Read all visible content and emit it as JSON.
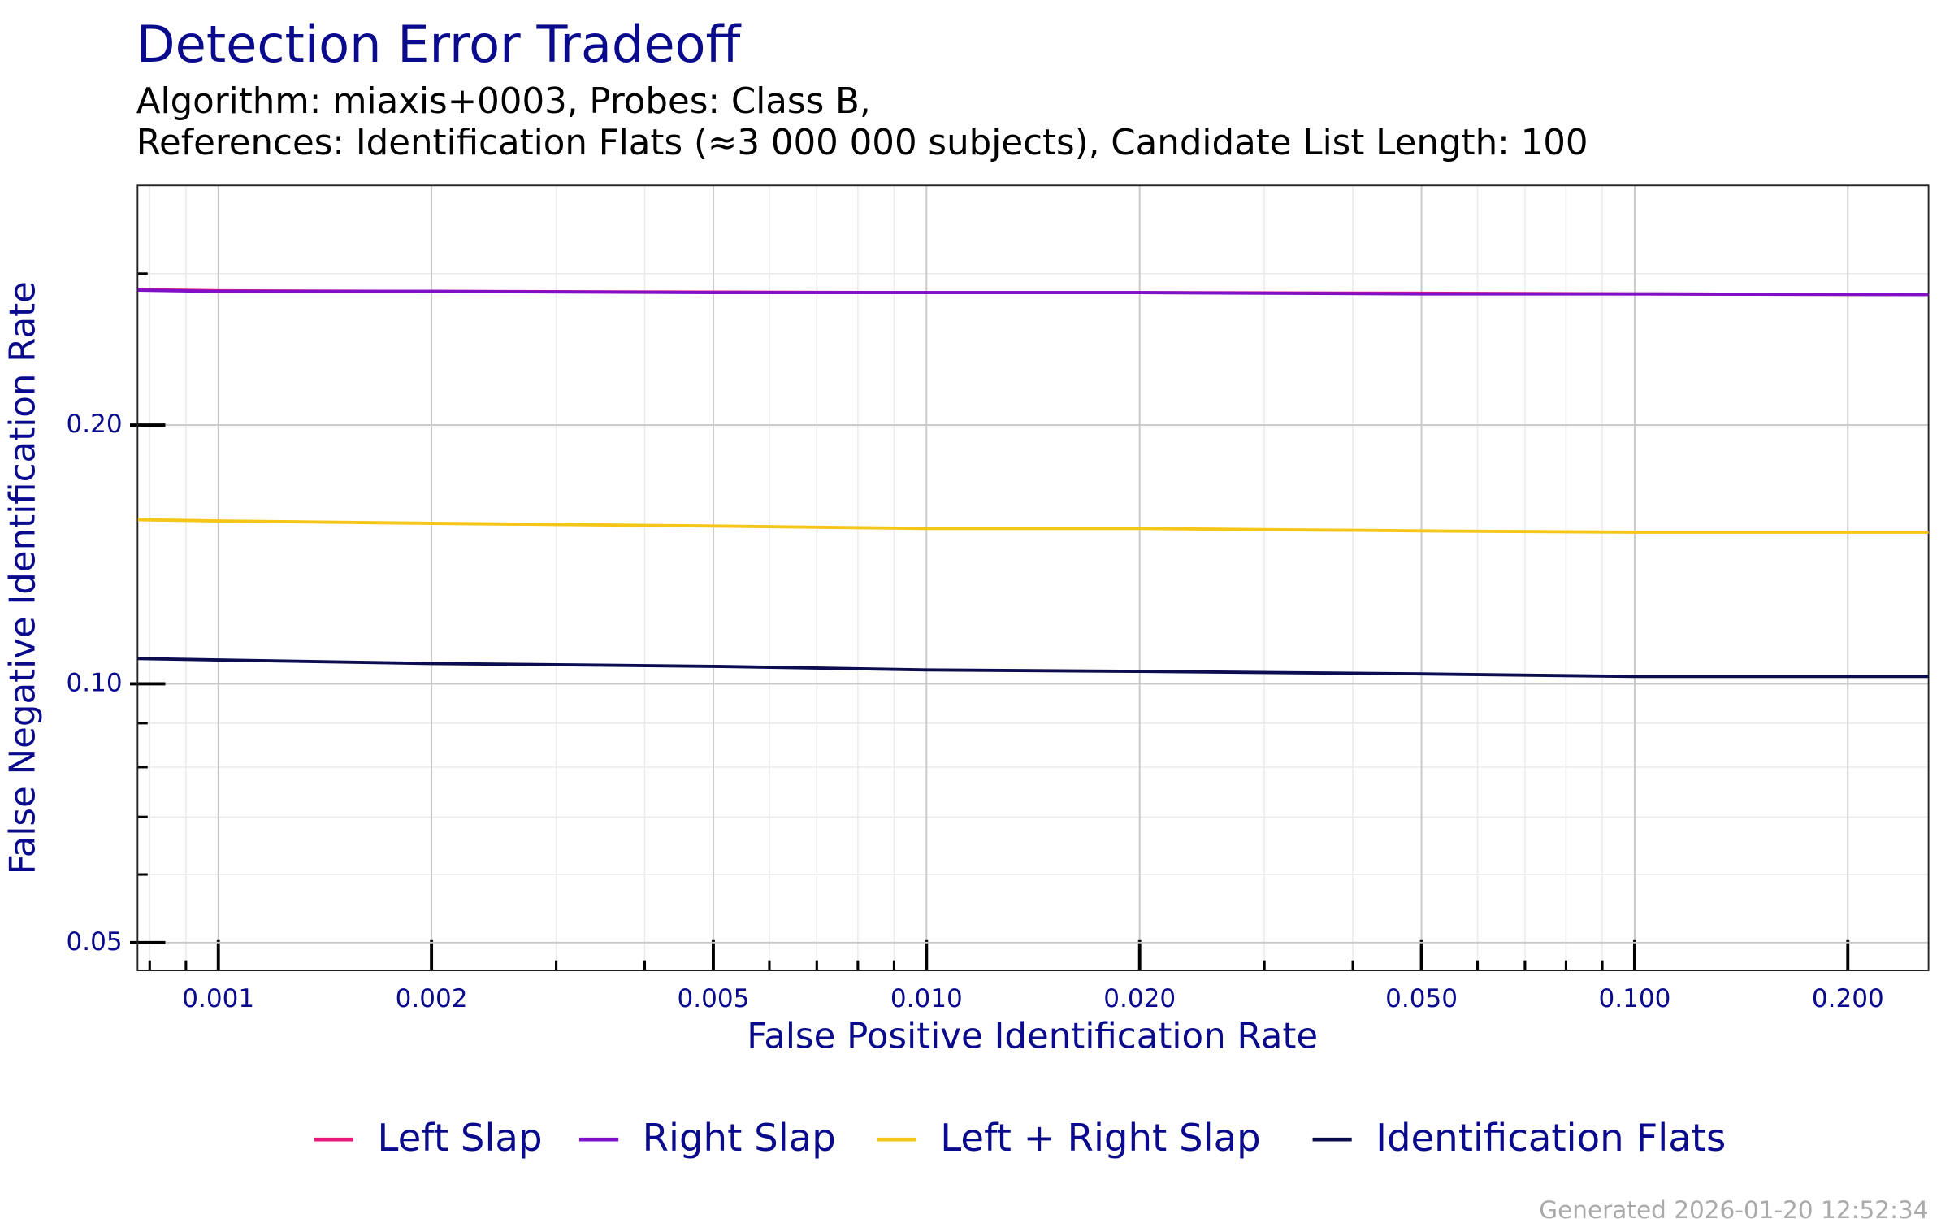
{
  "chart_data": {
    "type": "line",
    "title": "Detection Error Tradeoff",
    "subtitle": [
      "Algorithm: miaxis+0003, Probes: Class B,",
      "References: Identification Flats (≈3 000 000 subjects), Candidate List Length: 100"
    ],
    "x_label": "False Positive Identification Rate",
    "y_label": "False Negative Identification Rate",
    "footer": "Generated 2026-01-20 12:52:34",
    "x": [
      0.00077,
      0.001,
      0.002,
      0.005,
      0.01,
      0.02,
      0.05,
      0.1,
      0.26
    ],
    "series": [
      {
        "name": "Left Slap",
        "color": "#e8197d",
        "values": [
          0.2875,
          0.2866,
          0.2861,
          0.2856,
          0.2852,
          0.2852,
          0.2847,
          0.2842,
          0.2837
        ]
      },
      {
        "name": "Right Slap",
        "color": "#8010c8",
        "values": [
          0.2871,
          0.2861,
          0.2861,
          0.2852,
          0.2852,
          0.2852,
          0.2842,
          0.2842,
          0.2837
        ]
      },
      {
        "name": "Left + Right Slap",
        "color": "#f5c518",
        "values": [
          0.1552,
          0.1547,
          0.1537,
          0.1526,
          0.1516,
          0.1516,
          0.1506,
          0.1501,
          0.1501
        ]
      },
      {
        "name": "Identification Flats",
        "color": "#0c0c50",
        "values": [
          0.107,
          0.1066,
          0.1056,
          0.1048,
          0.1038,
          0.1034,
          0.1027,
          0.102,
          0.102
        ]
      }
    ],
    "x_log": true,
    "y_log": true,
    "xlim": [
      0.000769,
      0.26
    ],
    "ylim": [
      0.0464,
      0.38
    ],
    "xticks": [
      0.001,
      0.002,
      0.005,
      {
        "value": 0.01,
        "label": "0.010"
      },
      {
        "value": 0.02,
        "label": "0.020"
      },
      {
        "value": 0.05,
        "label": "0.050"
      },
      {
        "value": 0.1,
        "label": "0.100"
      },
      {
        "value": 0.2,
        "label": "0.200"
      }
    ],
    "yticks": [
      0.05,
      {
        "value": 0.1,
        "label": "0.10"
      },
      {
        "value": 0.2,
        "label": "0.20"
      }
    ],
    "grid": true,
    "legend": "bottom"
  }
}
